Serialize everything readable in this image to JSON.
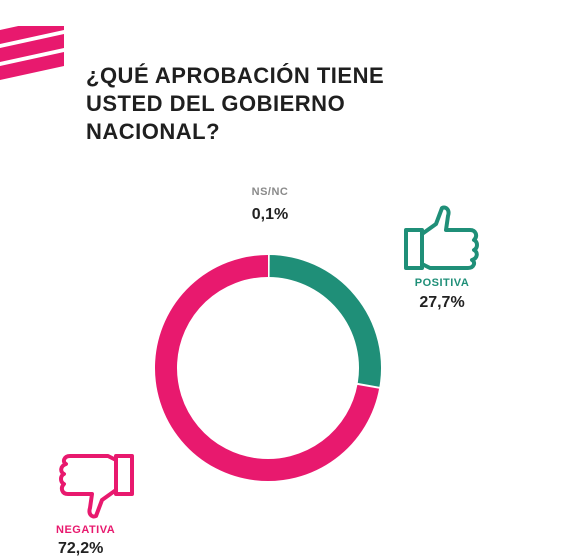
{
  "title": "¿QUÉ APROBACIÓN TIENE USTED DEL GOBIERNO NACIONAL?",
  "colors": {
    "positive": "#1f8f78",
    "negative": "#e8196e",
    "nsnc": "#cfcfcf",
    "text": "#1f1f1f"
  },
  "icons": {
    "positive": "thumbs-up-icon",
    "negative": "thumbs-down-icon",
    "logo": "brand-stripes-icon"
  },
  "chart_data": {
    "type": "pie",
    "variant": "donut",
    "slices": [
      {
        "label": "NS/NC",
        "value": 0.1,
        "value_label": "0,1%",
        "color": "#cfcfcf"
      },
      {
        "label": "POSITIVA",
        "value": 27.7,
        "value_label": "27,7%",
        "color": "#1f8f78"
      },
      {
        "label": "NEGATIVA",
        "value": 72.2,
        "value_label": "72,2%",
        "color": "#e8196e"
      }
    ]
  }
}
